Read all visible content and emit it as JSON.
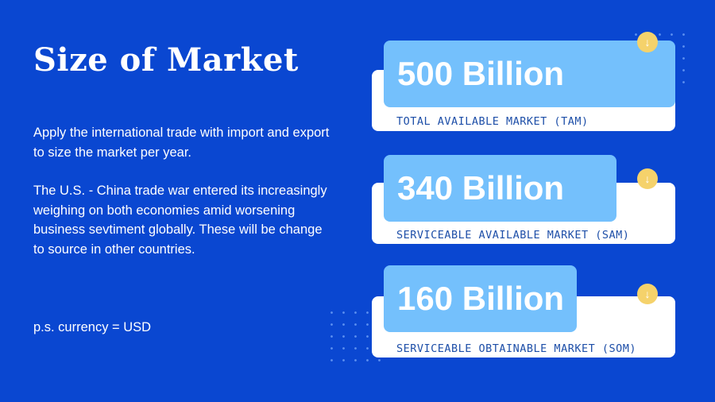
{
  "slide": {
    "title": "Size of Market",
    "paragraph_1": "Apply the international  trade with import and export to size the market per year.",
    "paragraph_2": "The U.S. - China trade war entered its increasingly weighing on both economies amid worsening business sevtiment globally. These will be change to source in other countries.",
    "note": "p.s.  currency = USD"
  },
  "markets": [
    {
      "value": "500 Billion",
      "caption": "TOTAL AVAILABLE MARKET (TAM)",
      "icon": "arrow-down-icon"
    },
    {
      "value": "340 Billion",
      "caption": "SERVICEABLE AVAILABLE MARKET (SAM)",
      "icon": "arrow-down-icon"
    },
    {
      "value": "160 Billion",
      "caption": "SERVICEABLE OBTAINABLE MARKET (SOM)",
      "icon": "arrow-down-icon"
    }
  ],
  "colors": {
    "background": "#0a47d1",
    "value_box": "#74c0fc",
    "caption_text": "#1e4fa8",
    "badge": "#f5d26b"
  }
}
